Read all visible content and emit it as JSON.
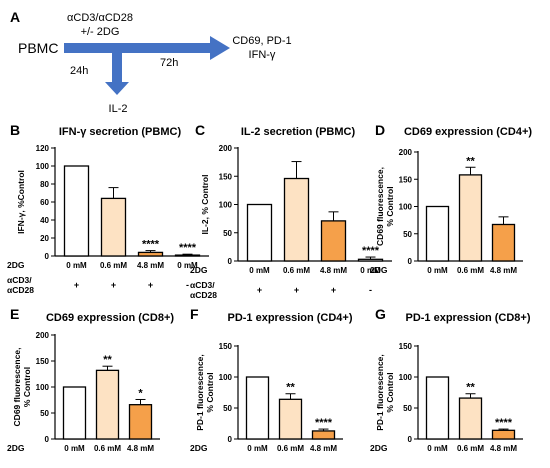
{
  "schematic": {
    "panel_label": "A",
    "source": "PBMC",
    "treatment_line1": "αCD3/αCD28",
    "treatment_line2": "+/- 2DG",
    "time_short": "24h",
    "time_long": "72h",
    "readout_short": "IL-2",
    "readout_long_line1": "CD69, PD-1",
    "readout_long_line2": "IFN-γ",
    "arrow_color": "#4472c4"
  },
  "row_labels": {
    "dose": "2DG",
    "stim_line1": "αCD3/",
    "stim_line2": "αCD28"
  },
  "colors": {
    "0 mM": "#ffffff",
    "0.6 mM": "#fde2c3",
    "4.8 mM": "#f5a04a",
    "none": "#ffffff"
  },
  "chart_data": [
    {
      "panel": "B",
      "type": "bar",
      "title": "IFN-γ secretion (PBMC)",
      "ylabel": "IFN-γ, %Control",
      "ylim": [
        0,
        120
      ],
      "yticks": [
        0,
        20,
        40,
        60,
        80,
        100,
        120
      ],
      "categories": [
        "0 mM",
        "0.6 mM",
        "4.8 mM",
        "0 mM"
      ],
      "values": [
        100,
        64,
        4,
        1
      ],
      "errors": [
        0,
        12,
        2,
        1
      ],
      "significance": [
        "",
        "",
        "****",
        "****"
      ],
      "stim": [
        "+",
        "+",
        "+",
        "-"
      ],
      "fills": [
        "0 mM",
        "0.6 mM",
        "4.8 mM",
        "none"
      ]
    },
    {
      "panel": "C",
      "type": "bar",
      "title": "IL-2 secretion (PBMC)",
      "ylabel": "IL-2, % Control",
      "ylim": [
        0,
        200
      ],
      "yticks": [
        0,
        50,
        100,
        150,
        200
      ],
      "categories": [
        "0 mM",
        "0.6 mM",
        "4.8 mM",
        "0 mM"
      ],
      "values": [
        100,
        146,
        71,
        3
      ],
      "errors": [
        0,
        30,
        16,
        4
      ],
      "significance": [
        "",
        "",
        "",
        "****"
      ],
      "stim": [
        "+",
        "+",
        "+",
        "-"
      ],
      "fills": [
        "0 mM",
        "0.6 mM",
        "4.8 mM",
        "none"
      ]
    },
    {
      "panel": "D",
      "type": "bar",
      "title": "CD69 expression (CD4+)",
      "ylabel_line1": "CD69 fluorescence,",
      "ylabel_line2": "% Control",
      "ylim": [
        0,
        200
      ],
      "yticks": [
        0,
        50,
        100,
        150,
        200
      ],
      "categories": [
        "0 mM",
        "0.6 mM",
        "4.8 mM"
      ],
      "values": [
        100,
        158,
        67
      ],
      "errors": [
        0,
        14,
        14
      ],
      "significance": [
        "",
        "**",
        ""
      ],
      "fills": [
        "0 mM",
        "0.6 mM",
        "4.8 mM"
      ]
    },
    {
      "panel": "E",
      "type": "bar",
      "title": "CD69 expression (CD8+)",
      "ylabel_line1": "CD69 fluorescence,",
      "ylabel_line2": "% Control",
      "ylim": [
        0,
        200
      ],
      "yticks": [
        0,
        50,
        100,
        150,
        200
      ],
      "categories": [
        "0 mM",
        "0.6 mM",
        "4.8 mM"
      ],
      "values": [
        100,
        132,
        66
      ],
      "errors": [
        0,
        8,
        10
      ],
      "significance": [
        "",
        "**",
        "*"
      ],
      "fills": [
        "0 mM",
        "0.6 mM",
        "4.8 mM"
      ]
    },
    {
      "panel": "F",
      "type": "bar",
      "title": "PD-1 expression (CD4+)",
      "ylabel_line1": "PD-1 fluorescence,",
      "ylabel_line2": "% Control",
      "ylim": [
        0,
        150
      ],
      "yticks": [
        0,
        50,
        100,
        150
      ],
      "categories": [
        "0 mM",
        "0.6 mM",
        "4.8 mM"
      ],
      "values": [
        100,
        64,
        13
      ],
      "errors": [
        0,
        9,
        3
      ],
      "significance": [
        "",
        "**",
        "****"
      ],
      "fills": [
        "0 mM",
        "0.6 mM",
        "4.8 mM"
      ]
    },
    {
      "panel": "G",
      "type": "bar",
      "title": "PD-1 expression (CD8+)",
      "ylabel_line1": "PD-1 fluorescence,",
      "ylabel_line2": "% Control",
      "ylim": [
        0,
        150
      ],
      "yticks": [
        0,
        50,
        100,
        150
      ],
      "categories": [
        "0 mM",
        "0.6 mM",
        "4.8 mM"
      ],
      "values": [
        100,
        66,
        14
      ],
      "errors": [
        0,
        7,
        2
      ],
      "significance": [
        "",
        "**",
        "****"
      ],
      "fills": [
        "0 mM",
        "0.6 mM",
        "4.8 mM"
      ]
    }
  ]
}
